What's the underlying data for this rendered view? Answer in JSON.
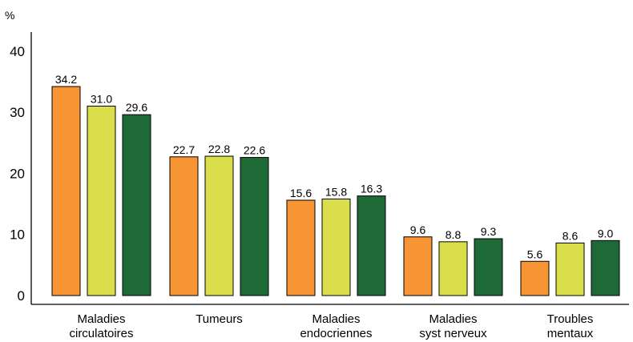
{
  "chart_data": {
    "type": "bar",
    "title": "",
    "xlabel": "",
    "ylabel": "%",
    "ylim": [
      0,
      40
    ],
    "yticks": [
      0,
      10,
      20,
      30,
      40
    ],
    "grid": false,
    "legend": "none",
    "categories": [
      [
        "Maladies",
        "circulatoires"
      ],
      [
        "Tumeurs"
      ],
      [
        "Maladies",
        "endocriennes"
      ],
      [
        "Maladies",
        "syst nerveux"
      ],
      [
        "Troubles",
        "mentaux"
      ]
    ],
    "series": [
      {
        "values": [
          34.2,
          22.7,
          15.6,
          9.6,
          5.6
        ],
        "labels": [
          "34.2",
          "22.7",
          "15.6",
          "9.6",
          "5.6"
        ],
        "color": "#f79433"
      },
      {
        "values": [
          31.0,
          22.8,
          15.8,
          8.8,
          8.6
        ],
        "labels": [
          "31.0",
          "22.8",
          "15.8",
          "8.8",
          "8.6"
        ],
        "color": "#dade4a"
      },
      {
        "values": [
          29.6,
          22.6,
          16.3,
          9.3,
          9.0
        ],
        "labels": [
          "29.6",
          "22.6",
          "16.3",
          "9.3",
          "9.0"
        ],
        "color": "#1e6a37"
      }
    ]
  }
}
